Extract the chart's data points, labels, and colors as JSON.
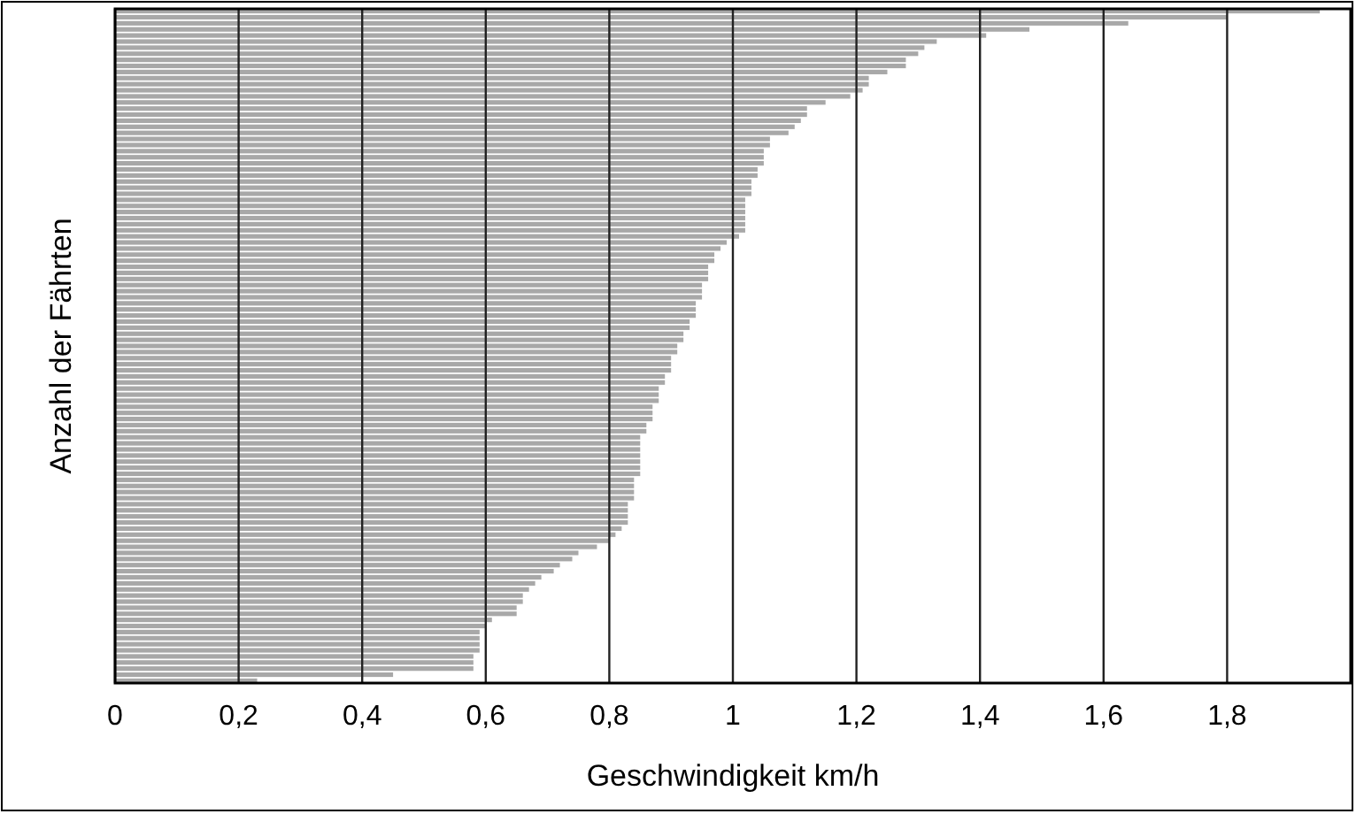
{
  "chart_data": {
    "type": "bar",
    "orientation": "horizontal",
    "xlabel": "Geschwindigkeit km/h",
    "ylabel": "Anzahl der Fährten",
    "color": "#a8a8a8",
    "grid": "x",
    "tick_labels": "x",
    "xlim": [
      0,
      2
    ],
    "xticks": [
      0,
      {
        "value": 0.2,
        "label": "0,2"
      },
      {
        "value": 0.4,
        "label": "0,4"
      },
      {
        "value": 0.6,
        "label": "0,6"
      },
      {
        "value": 0.8,
        "label": "0,8"
      },
      1,
      {
        "value": 1.2,
        "label": "1,2"
      },
      {
        "value": 1.4,
        "label": "1,4"
      },
      {
        "value": 1.6,
        "label": "1,6"
      },
      {
        "value": 1.8,
        "label": "1,8"
      }
    ],
    "categories": [
      null,
      null,
      null,
      null,
      null,
      null,
      null,
      null,
      null,
      null,
      null,
      null,
      null,
      null,
      null,
      null,
      null,
      null,
      null,
      null,
      null,
      null,
      null,
      null,
      null,
      null,
      null,
      null,
      null,
      null,
      null,
      null,
      null,
      null,
      null,
      null,
      null,
      null,
      null,
      null,
      null,
      null,
      null,
      null,
      null,
      null,
      null,
      null,
      null,
      null,
      null,
      null,
      null,
      null,
      null,
      null,
      null,
      null,
      null,
      null,
      null,
      null,
      null,
      null,
      null,
      null,
      null,
      null,
      null,
      null,
      null,
      null,
      null,
      null,
      null,
      null,
      null,
      null,
      null,
      null,
      null,
      null,
      null,
      null,
      null,
      null,
      null,
      null,
      null,
      null,
      null,
      null,
      null,
      null,
      null,
      null,
      null,
      null,
      null,
      null,
      null,
      null,
      null,
      null,
      null,
      null,
      null,
      null,
      null,
      null,
      null
    ],
    "values": [
      1.95,
      1.8,
      1.64,
      1.48,
      1.41,
      1.33,
      1.31,
      1.3,
      1.28,
      1.28,
      1.25,
      1.22,
      1.22,
      1.21,
      1.19,
      1.15,
      1.12,
      1.12,
      1.11,
      1.1,
      1.09,
      1.06,
      1.06,
      1.05,
      1.05,
      1.05,
      1.04,
      1.04,
      1.03,
      1.03,
      1.03,
      1.02,
      1.02,
      1.02,
      1.02,
      1.02,
      1.02,
      1.01,
      0.99,
      0.98,
      0.97,
      0.97,
      0.96,
      0.96,
      0.96,
      0.95,
      0.95,
      0.95,
      0.94,
      0.94,
      0.94,
      0.93,
      0.93,
      0.92,
      0.92,
      0.91,
      0.91,
      0.9,
      0.9,
      0.9,
      0.89,
      0.89,
      0.88,
      0.88,
      0.88,
      0.87,
      0.87,
      0.87,
      0.86,
      0.86,
      0.85,
      0.85,
      0.85,
      0.85,
      0.85,
      0.85,
      0.85,
      0.84,
      0.84,
      0.84,
      0.84,
      0.83,
      0.83,
      0.83,
      0.83,
      0.82,
      0.81,
      0.8,
      0.78,
      0.75,
      0.74,
      0.72,
      0.71,
      0.69,
      0.68,
      0.67,
      0.66,
      0.66,
      0.65,
      0.65,
      0.61,
      0.6,
      0.59,
      0.59,
      0.59,
      0.59,
      0.58,
      0.58,
      0.58,
      0.45,
      0.23
    ]
  }
}
